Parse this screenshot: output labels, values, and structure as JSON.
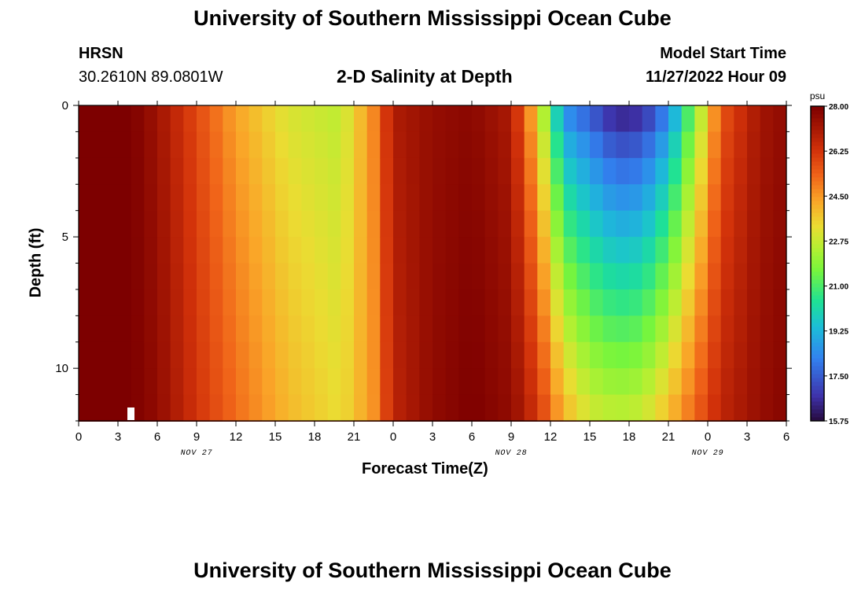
{
  "page": {
    "title_top": "University of Southern Mississippi Ocean Cube",
    "title_bottom": "University of Southern Mississippi Ocean Cube",
    "station": {
      "id": "HRSN",
      "coords": "30.2610N  89.0801W"
    },
    "subtitle": "2-D Salinity at Depth",
    "model_start": {
      "label": "Model Start Time",
      "value": "11/27/2022 Hour 09"
    }
  },
  "chart_data": {
    "type": "heatmap",
    "title": "2-D Salinity at Depth",
    "xlabel": "Forecast Time(Z)",
    "ylabel": "Depth (ft)",
    "x_tick_labels": [
      "0",
      "3",
      "6",
      "9",
      "12",
      "15",
      "18",
      "21",
      "0",
      "3",
      "6",
      "9",
      "12",
      "15",
      "18",
      "21",
      "0",
      "3",
      "6"
    ],
    "date_labels": [
      "NOV 27",
      "NOV 28",
      "NOV 29"
    ],
    "y_tick_labels": [
      "0",
      "5",
      "10"
    ],
    "x_range_hours": [
      0,
      54
    ],
    "y_range_ft": [
      0,
      12
    ],
    "colorbar": {
      "unit": "psu",
      "range": [
        15.75,
        28.0
      ],
      "tick_labels": [
        "28.00",
        "26.25",
        "24.50",
        "22.75",
        "21.00",
        "19.25",
        "17.50",
        "15.75"
      ]
    },
    "depths_ft": [
      0,
      1,
      2,
      3,
      4,
      5,
      6,
      7,
      8,
      9,
      10,
      11,
      12
    ],
    "salinity_profile_hours": [
      0,
      4,
      6,
      9,
      12,
      16,
      20,
      22.5,
      24,
      27,
      30,
      33,
      35,
      37,
      39,
      41,
      43,
      45,
      47.5,
      49,
      52,
      54
    ],
    "salinity_surface": [
      28.0,
      28.0,
      27.3,
      25.8,
      24.3,
      23.0,
      22.6,
      24.8,
      27.0,
      27.5,
      27.7,
      27.0,
      23.5,
      18.2,
      17.2,
      16.0,
      16.2,
      18.0,
      22.5,
      25.5,
      27.2,
      27.6
    ],
    "salinity_bottom": [
      28.0,
      28.0,
      27.6,
      26.3,
      25.2,
      24.0,
      23.3,
      24.6,
      26.7,
      27.6,
      28.0,
      27.6,
      26.3,
      24.2,
      23.0,
      22.7,
      22.9,
      24.0,
      25.7,
      26.7,
      27.5,
      27.8
    ]
  }
}
